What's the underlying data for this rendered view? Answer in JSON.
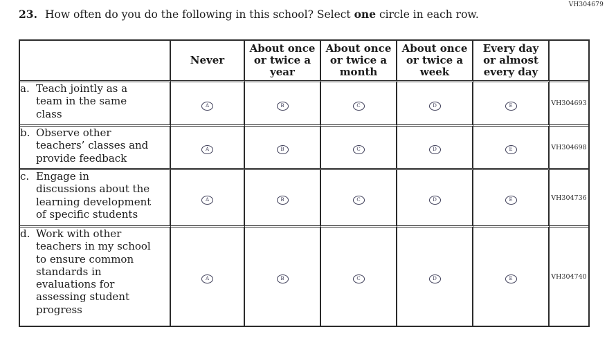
{
  "page": {
    "top_right_code": "VH304679"
  },
  "question": {
    "number": "23.",
    "prefix": "How often do you do the following in this school? Select ",
    "bold_word": "one",
    "suffix": " circle in each row."
  },
  "table": {
    "column_headers": [
      "",
      "Never",
      "About once or twice a year",
      "About once or twice a month",
      "About once or twice a week",
      "Every day or almost every day",
      ""
    ],
    "options": [
      "A",
      "B",
      "C",
      "D",
      "E"
    ],
    "rows": [
      {
        "label": "a.",
        "text": "Teach jointly as a team in the same class",
        "code": "VH304693"
      },
      {
        "label": "b.",
        "text": "Observe other teachers’ classes and provide feedback",
        "code": "VH304698"
      },
      {
        "label": "c.",
        "text": "Engage in discussions about the learning development of specific students",
        "code": "VH304736"
      },
      {
        "label": "d.",
        "text": "Work with other teachers in my school to ensure common standards in evaluations for assessing student progress",
        "code": "VH304740"
      }
    ]
  }
}
